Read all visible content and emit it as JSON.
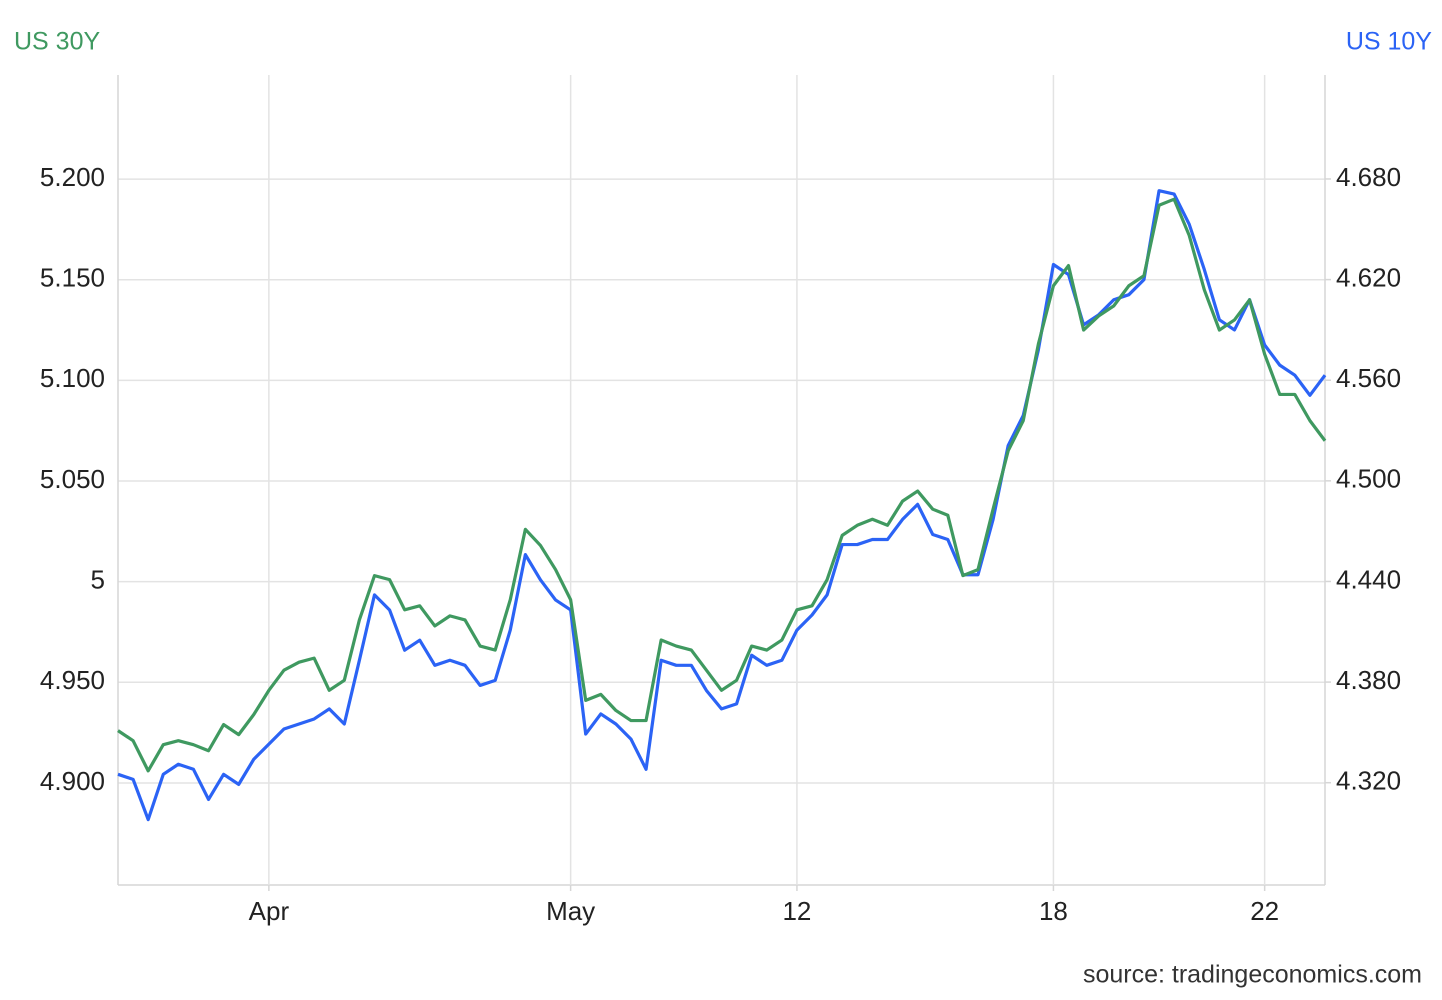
{
  "chart_data": {
    "type": "line",
    "source": "source: tradingeconomics.com",
    "categories": [
      null,
      null,
      null,
      null,
      null,
      null,
      null,
      null,
      null,
      null,
      "Apr",
      null,
      null,
      null,
      null,
      null,
      null,
      null,
      null,
      null,
      null,
      null,
      null,
      null,
      null,
      null,
      null,
      null,
      null,
      null,
      "May",
      null,
      null,
      null,
      null,
      null,
      null,
      null,
      null,
      null,
      null,
      null,
      null,
      null,
      null,
      "12",
      null,
      null,
      null,
      null,
      null,
      null,
      null,
      null,
      null,
      null,
      null,
      null,
      null,
      null,
      null,
      null,
      "18",
      null,
      null,
      null,
      null,
      null,
      null,
      null,
      null,
      null,
      null,
      null,
      null,
      null,
      "22",
      null,
      null,
      null,
      null
    ],
    "series": [
      {
        "name": "US 30Y",
        "color": "#3f9960",
        "axis": "y",
        "values": [
          4.926,
          4.921,
          4.906,
          4.919,
          4.921,
          4.919,
          4.916,
          4.929,
          4.924,
          4.934,
          4.946,
          4.956,
          4.96,
          4.962,
          4.946,
          4.951,
          4.981,
          5.003,
          5.001,
          4.986,
          4.988,
          4.978,
          4.983,
          4.981,
          4.968,
          4.966,
          4.991,
          5.026,
          5.018,
          5.006,
          4.991,
          4.941,
          4.944,
          4.936,
          4.931,
          4.931,
          4.971,
          4.968,
          4.966,
          4.956,
          4.946,
          4.951,
          4.968,
          4.966,
          4.971,
          4.986,
          4.988,
          5.001,
          5.023,
          5.028,
          5.031,
          5.028,
          5.04,
          5.045,
          5.036,
          5.033,
          5.003,
          5.006,
          5.036,
          5.065,
          5.08,
          5.118,
          5.147,
          5.157,
          5.125,
          5.132,
          5.137,
          5.147,
          5.152,
          5.187,
          5.19,
          5.172,
          5.145,
          5.125,
          5.13,
          5.14,
          5.113,
          5.093,
          5.093,
          5.08,
          5.07
        ]
      },
      {
        "name": "US 10Y",
        "color": "#2b63f5",
        "axis": "y2",
        "values": [
          4.325,
          4.322,
          4.298,
          4.325,
          4.331,
          4.328,
          4.31,
          4.325,
          4.319,
          4.334,
          4.343,
          4.352,
          4.355,
          4.358,
          4.364,
          4.355,
          4.393,
          4.432,
          4.423,
          4.399,
          4.405,
          4.39,
          4.393,
          4.39,
          4.378,
          4.381,
          4.411,
          4.456,
          4.441,
          4.429,
          4.423,
          4.349,
          4.361,
          4.355,
          4.346,
          4.328,
          4.393,
          4.39,
          4.39,
          4.375,
          4.364,
          4.367,
          4.396,
          4.39,
          4.393,
          4.411,
          4.42,
          4.432,
          4.462,
          4.462,
          4.465,
          4.465,
          4.477,
          4.486,
          4.468,
          4.465,
          4.444,
          4.444,
          4.477,
          4.521,
          4.539,
          4.578,
          4.629,
          4.623,
          4.593,
          4.599,
          4.608,
          4.611,
          4.62,
          4.673,
          4.671,
          4.653,
          4.626,
          4.596,
          4.59,
          4.608,
          4.581,
          4.569,
          4.563,
          4.551,
          4.563
        ]
      }
    ],
    "ylim": [
      4.8493,
      5.2517
    ],
    "yticks": [
      {
        "value": 4.9,
        "label": "4.900"
      },
      {
        "value": 4.95,
        "label": "4.950"
      },
      5,
      {
        "value": 5.05,
        "label": "5.050"
      },
      {
        "value": 5.1,
        "label": "5.100"
      },
      {
        "value": 5.15,
        "label": "5.150"
      },
      {
        "value": 5.2,
        "label": "5.200"
      }
    ],
    "y2lim": [
      4.259,
      4.742
    ],
    "y2ticks": [
      {
        "value": 4.32,
        "label": "4.320"
      },
      {
        "value": 4.38,
        "label": "4.380"
      },
      {
        "value": 4.44,
        "label": "4.440"
      },
      {
        "value": 4.5,
        "label": "4.500"
      },
      {
        "value": 4.56,
        "label": "4.560"
      },
      {
        "value": 4.62,
        "label": "4.620"
      },
      {
        "value": 4.68,
        "label": "4.680"
      }
    ],
    "grid": true
  }
}
